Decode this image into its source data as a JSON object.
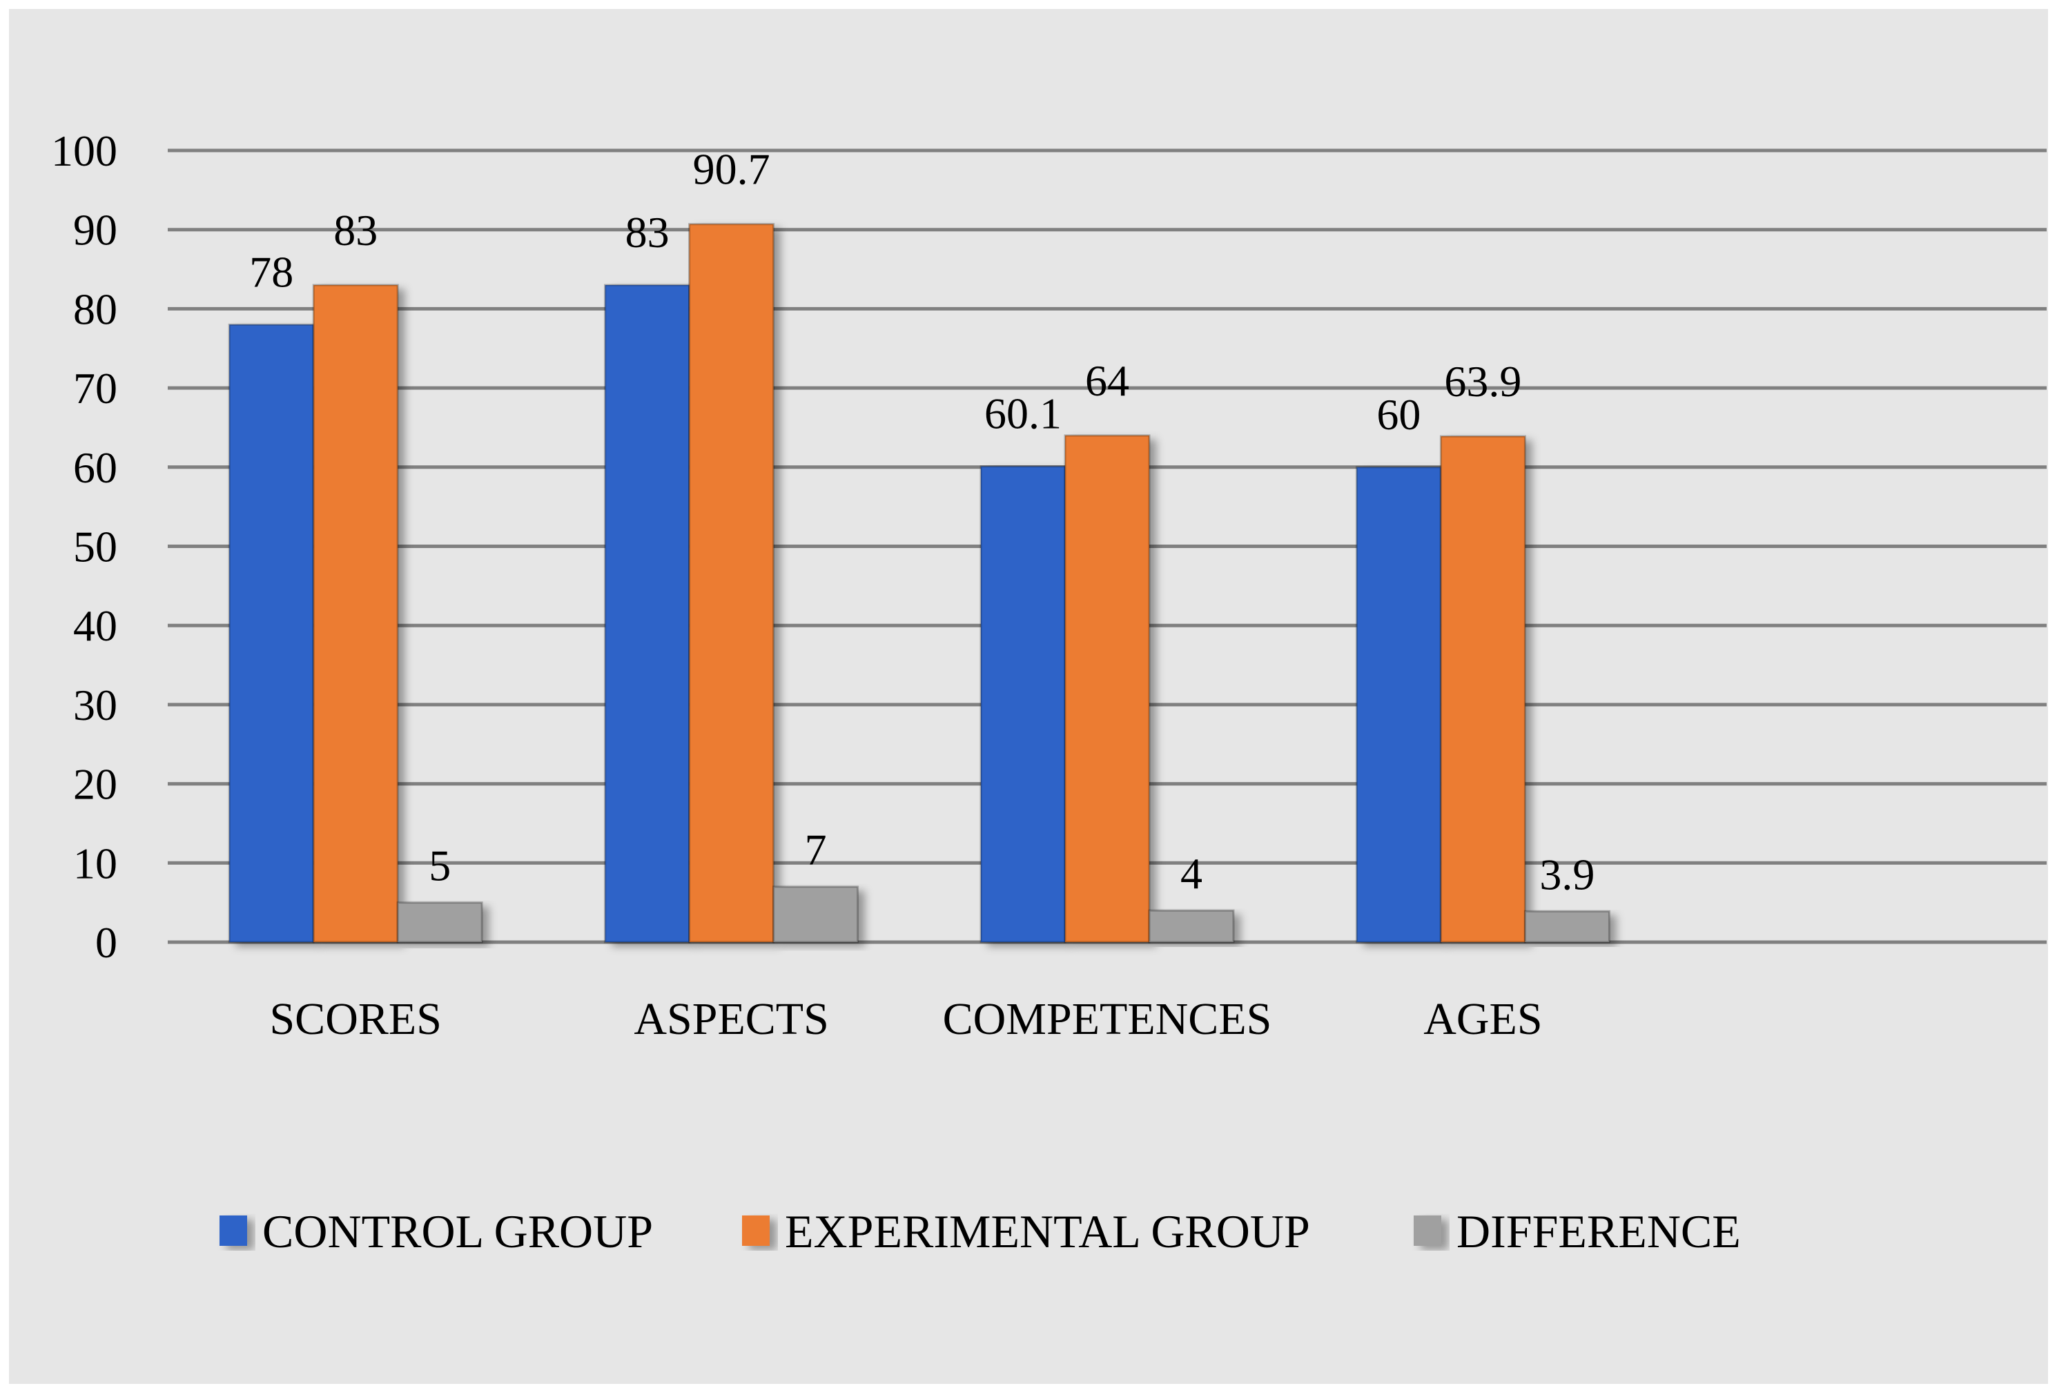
{
  "chart_data": {
    "type": "bar",
    "title": "",
    "xlabel": "",
    "ylabel": "",
    "categories": [
      "SCORES",
      "ASPECTS",
      "COMPETENCES",
      "AGES"
    ],
    "series": [
      {
        "name": "CONTROL GROUP",
        "color": "#2e64c8",
        "values": [
          78,
          83,
          60.1,
          60
        ],
        "labels": [
          "78",
          "83",
          "60.1",
          "60"
        ]
      },
      {
        "name": "EXPERIMENTAL GROUP",
        "color": "#ec7c30",
        "values": [
          83,
          90.7,
          64,
          63.9
        ],
        "labels": [
          "83",
          "90.7",
          "64",
          "63.9"
        ]
      },
      {
        "name": "DIFFERENCE",
        "color": "#a0a0a0",
        "values": [
          5,
          7,
          4,
          3.9
        ],
        "labels": [
          "5",
          "7",
          "4",
          "3.9"
        ]
      }
    ],
    "ylim": [
      0,
      100
    ],
    "yticks": [
      "0",
      "10",
      "20",
      "30",
      "40",
      "50",
      "60",
      "70",
      "80",
      "90",
      "100"
    ],
    "grid": true,
    "legend_position": "bottom",
    "background": "#e6e6e6"
  }
}
